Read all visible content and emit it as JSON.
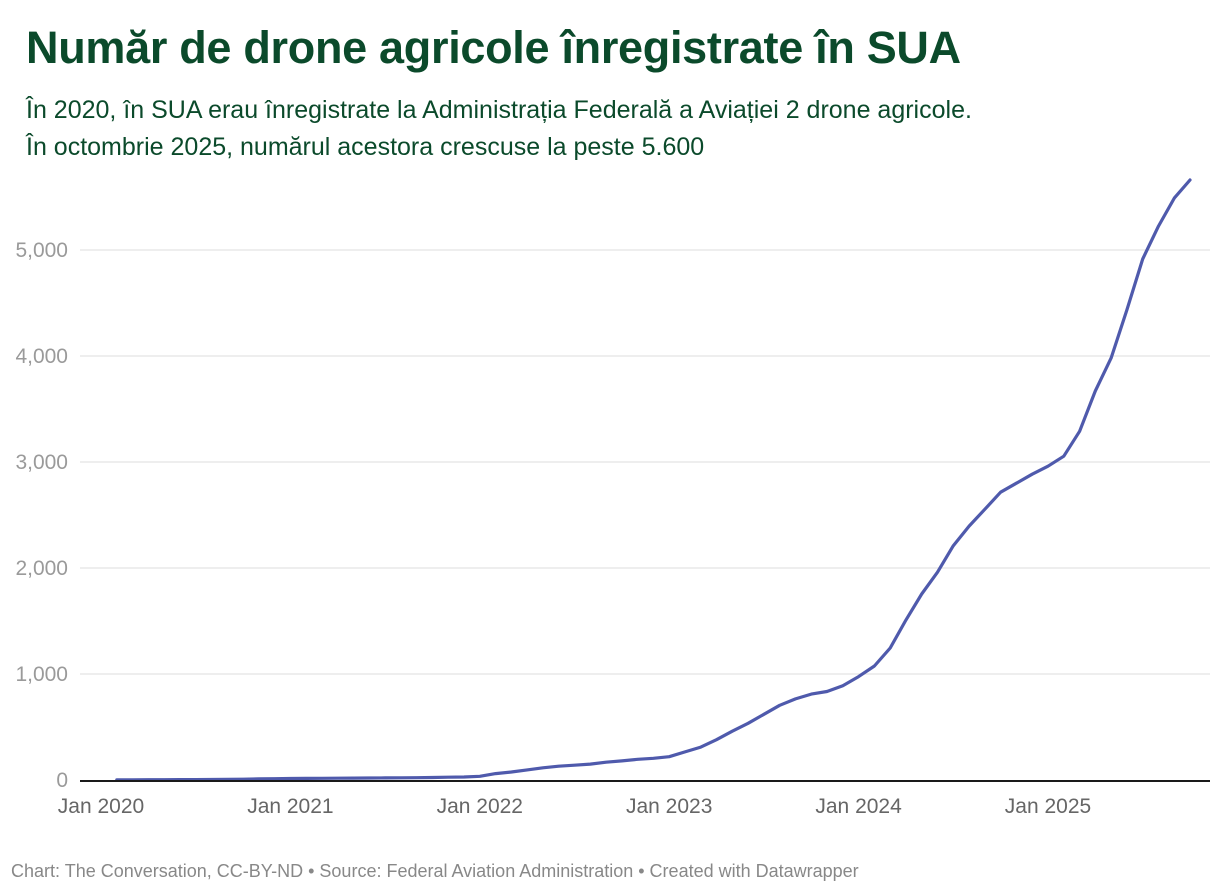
{
  "header": {
    "title": "Număr de drone agricole înregistrate în SUA",
    "subtitle_line1": "În 2020, în SUA erau înregistrate la Administrația Federală a Aviației 2 drone agricole.",
    "subtitle_line2": "În octombrie 2025, numărul acestora crescuse la peste 5.600"
  },
  "footer": {
    "text": "Chart: The Conversation, CC-BY-ND • Source: Federal Aviation Administration • Created with Datawrapper"
  },
  "colors": {
    "title": "#0b4a2b",
    "line": "#4f5aac",
    "grid": "#e3e3e3",
    "baseline": "#1a1a1a",
    "tick_text": "#9a9a9a",
    "footer_text": "#888888"
  },
  "chart_data": {
    "type": "line",
    "title": "Număr de drone agricole înregistrate în SUA",
    "xlabel": "",
    "ylabel": "",
    "ylim": [
      0,
      5700
    ],
    "y_ticks": [
      0,
      1000,
      2000,
      3000,
      4000,
      5000
    ],
    "y_tick_labels": [
      "0",
      "1,000",
      "2,000",
      "3,000",
      "4,000",
      "5,000"
    ],
    "x_ticks": [
      "2020-01",
      "2021-01",
      "2022-01",
      "2023-01",
      "2024-01",
      "2025-01"
    ],
    "x_tick_labels": [
      "Jan 2020",
      "Jan 2021",
      "Jan 2022",
      "Jan 2023",
      "Jan 2024",
      "Jan 2025"
    ],
    "x_range": [
      "2020-01",
      "2025-11"
    ],
    "grid": true,
    "legend": "none",
    "series": [
      {
        "name": "Drone agricole înregistrate",
        "x": [
          "2020-02",
          "2020-03",
          "2020-04",
          "2020-05",
          "2020-06",
          "2020-07",
          "2020-08",
          "2020-09",
          "2020-10",
          "2020-11",
          "2020-12",
          "2021-01",
          "2021-02",
          "2021-03",
          "2021-04",
          "2021-05",
          "2021-06",
          "2021-07",
          "2021-08",
          "2021-09",
          "2021-10",
          "2021-11",
          "2021-12",
          "2022-01",
          "2022-02",
          "2022-03",
          "2022-04",
          "2022-05",
          "2022-06",
          "2022-07",
          "2022-08",
          "2022-09",
          "2022-10",
          "2022-11",
          "2022-12",
          "2023-01",
          "2023-02",
          "2023-03",
          "2023-04",
          "2023-05",
          "2023-06",
          "2023-07",
          "2023-08",
          "2023-09",
          "2023-10",
          "2023-11",
          "2023-12",
          "2024-01",
          "2024-02",
          "2024-03",
          "2024-04",
          "2024-05",
          "2024-06",
          "2024-07",
          "2024-08",
          "2024-09",
          "2024-10",
          "2024-11",
          "2024-12",
          "2025-01",
          "2025-02",
          "2025-03",
          "2025-04",
          "2025-05",
          "2025-06",
          "2025-07",
          "2025-08",
          "2025-09",
          "2025-10"
        ],
        "values": [
          2,
          2,
          3,
          3,
          4,
          4,
          5,
          6,
          8,
          10,
          12,
          14,
          15,
          16,
          17,
          18,
          19,
          20,
          21,
          22,
          24,
          26,
          28,
          35,
          60,
          75,
          95,
          115,
          130,
          140,
          150,
          168,
          180,
          195,
          205,
          220,
          265,
          310,
          380,
          460,
          535,
          620,
          705,
          765,
          810,
          835,
          890,
          975,
          1075,
          1245,
          1510,
          1755,
          1960,
          2210,
          2395,
          2555,
          2715,
          2800,
          2885,
          2960,
          3055,
          3290,
          3670,
          3980,
          4435,
          4915,
          5225,
          5490,
          5660
        ]
      }
    ]
  }
}
